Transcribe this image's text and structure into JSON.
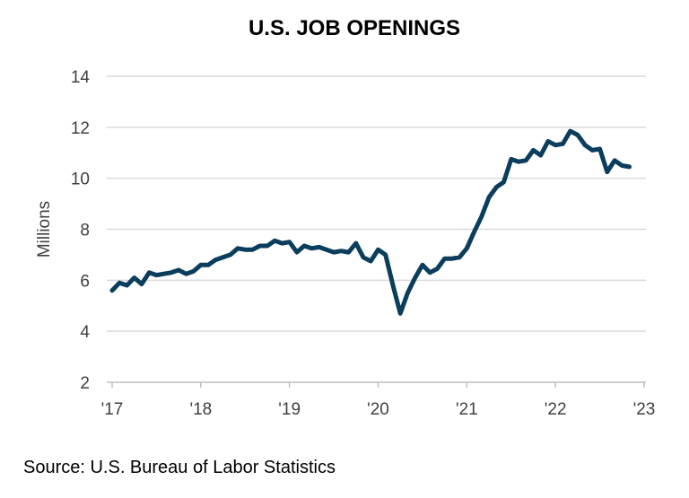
{
  "chart_data": {
    "type": "line",
    "title": "U.S. JOB OPENINGS",
    "ylabel": "Millions",
    "xlabel": "",
    "ylim": [
      2,
      14
    ],
    "yticks": [
      2,
      4,
      6,
      8,
      10,
      12,
      14
    ],
    "xticks": [
      "'17",
      "'18",
      "'19",
      "'20",
      "'21",
      "'22",
      "'23"
    ],
    "xrange": [
      "2017-01",
      "2023-01"
    ],
    "grid": true,
    "line_color": "#0B3D5C",
    "x_start": "2017-01",
    "frequency": "monthly",
    "values": [
      5.6,
      5.9,
      5.8,
      6.1,
      5.85,
      6.3,
      6.2,
      6.25,
      6.3,
      6.4,
      6.25,
      6.35,
      6.6,
      6.6,
      6.8,
      6.9,
      7.0,
      7.25,
      7.2,
      7.2,
      7.35,
      7.35,
      7.55,
      7.45,
      7.5,
      7.1,
      7.35,
      7.25,
      7.3,
      7.2,
      7.1,
      7.15,
      7.1,
      7.45,
      6.9,
      6.75,
      7.2,
      7.0,
      5.8,
      4.7,
      5.5,
      6.1,
      6.6,
      6.3,
      6.45,
      6.85,
      6.85,
      6.9,
      7.25,
      7.9,
      8.5,
      9.25,
      9.65,
      9.85,
      10.75,
      10.65,
      10.7,
      11.1,
      10.9,
      11.45,
      11.3,
      11.35,
      11.85,
      11.7,
      11.3,
      11.1,
      11.15,
      10.25,
      10.7,
      10.5,
      10.45
    ]
  },
  "source": "Source: U.S. Bureau of Labor Statistics"
}
